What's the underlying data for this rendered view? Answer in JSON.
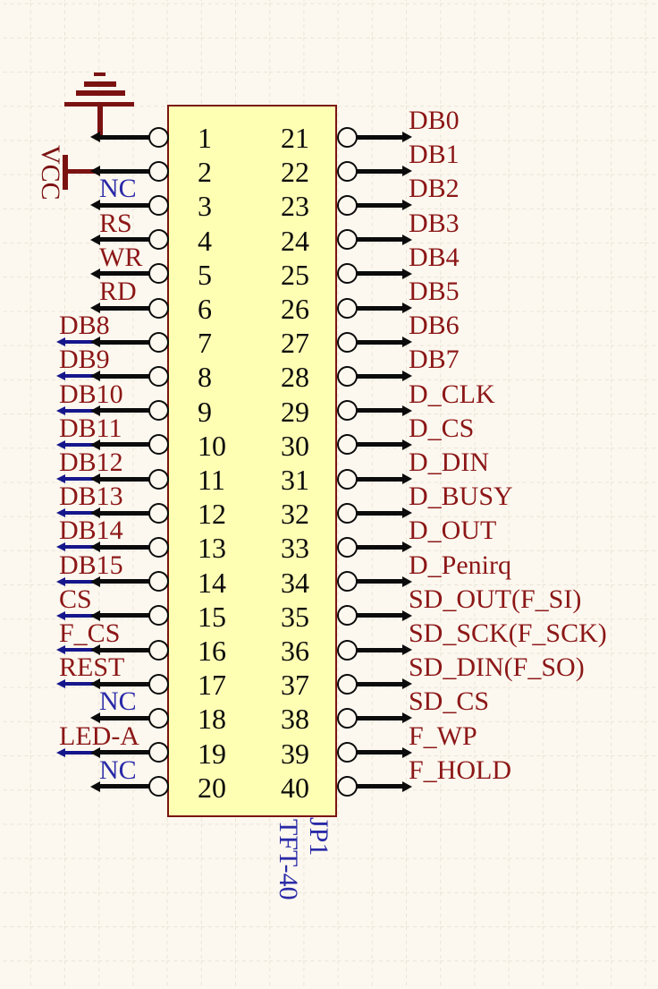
{
  "schematic": {
    "component": {
      "designator": "JP1",
      "part_number": "TFT-40",
      "pin_count": 40
    },
    "power": {
      "vcc_label": "VCC",
      "ground_symbol": "earth-ground",
      "vcc_symbol": "power-bar"
    },
    "colors": {
      "background": "#FCF8EF",
      "grid_line": "#E9E4D7",
      "body_fill": "#FFFFB4",
      "body_border": "#7B1410",
      "symbol_maroon": "#7B1212",
      "label_red": "#8C1717",
      "label_blue": "#2A2AA8",
      "wire_blue": "#16168C",
      "ink": "#0B0B0B"
    },
    "left_pins": [
      {
        "number": "1",
        "label": "",
        "color": "red",
        "ext": false,
        "symbol": "gnd"
      },
      {
        "number": "2",
        "label": "",
        "color": "red",
        "ext": false,
        "symbol": "vcc"
      },
      {
        "number": "3",
        "label": "NC",
        "color": "blue",
        "ext": false
      },
      {
        "number": "4",
        "label": "RS",
        "color": "red",
        "ext": false
      },
      {
        "number": "5",
        "label": "WR",
        "color": "red",
        "ext": false
      },
      {
        "number": "6",
        "label": "RD",
        "color": "red",
        "ext": false
      },
      {
        "number": "7",
        "label": "DB8",
        "color": "red",
        "ext": true
      },
      {
        "number": "8",
        "label": "DB9",
        "color": "red",
        "ext": true
      },
      {
        "number": "9",
        "label": "DB10",
        "color": "red",
        "ext": true
      },
      {
        "number": "10",
        "label": "DB11",
        "color": "red",
        "ext": true
      },
      {
        "number": "11",
        "label": "DB12",
        "color": "red",
        "ext": true
      },
      {
        "number": "12",
        "label": "DB13",
        "color": "red",
        "ext": true
      },
      {
        "number": "13",
        "label": "DB14",
        "color": "red",
        "ext": true
      },
      {
        "number": "14",
        "label": "DB15",
        "color": "red",
        "ext": true
      },
      {
        "number": "15",
        "label": "CS",
        "color": "red",
        "ext": true
      },
      {
        "number": "16",
        "label": "F_CS",
        "color": "red",
        "ext": true
      },
      {
        "number": "17",
        "label": "REST",
        "color": "red",
        "ext": true
      },
      {
        "number": "18",
        "label": "NC",
        "color": "blue",
        "ext": false
      },
      {
        "number": "19",
        "label": "LED-A",
        "color": "red",
        "ext": true
      },
      {
        "number": "20",
        "label": "NC",
        "color": "blue",
        "ext": false
      }
    ],
    "right_pins": [
      {
        "number": "21",
        "label": "DB0"
      },
      {
        "number": "22",
        "label": "DB1"
      },
      {
        "number": "23",
        "label": "DB2"
      },
      {
        "number": "24",
        "label": "DB3"
      },
      {
        "number": "25",
        "label": "DB4"
      },
      {
        "number": "26",
        "label": "DB5"
      },
      {
        "number": "27",
        "label": "DB6"
      },
      {
        "number": "28",
        "label": "DB7"
      },
      {
        "number": "29",
        "label": "D_CLK"
      },
      {
        "number": "30",
        "label": "D_CS"
      },
      {
        "number": "31",
        "label": "D_DIN"
      },
      {
        "number": "32",
        "label": "D_BUSY"
      },
      {
        "number": "33",
        "label": "D_OUT"
      },
      {
        "number": "34",
        "label": "D_Penirq"
      },
      {
        "number": "35",
        "label": "SD_OUT(F_SI)"
      },
      {
        "number": "36",
        "label": "SD_SCK(F_SCK)"
      },
      {
        "number": "37",
        "label": "SD_DIN(F_SO)"
      },
      {
        "number": "38",
        "label": "SD_CS"
      },
      {
        "number": "39",
        "label": "F_WP"
      },
      {
        "number": "40",
        "label": "F_HOLD"
      }
    ]
  }
}
